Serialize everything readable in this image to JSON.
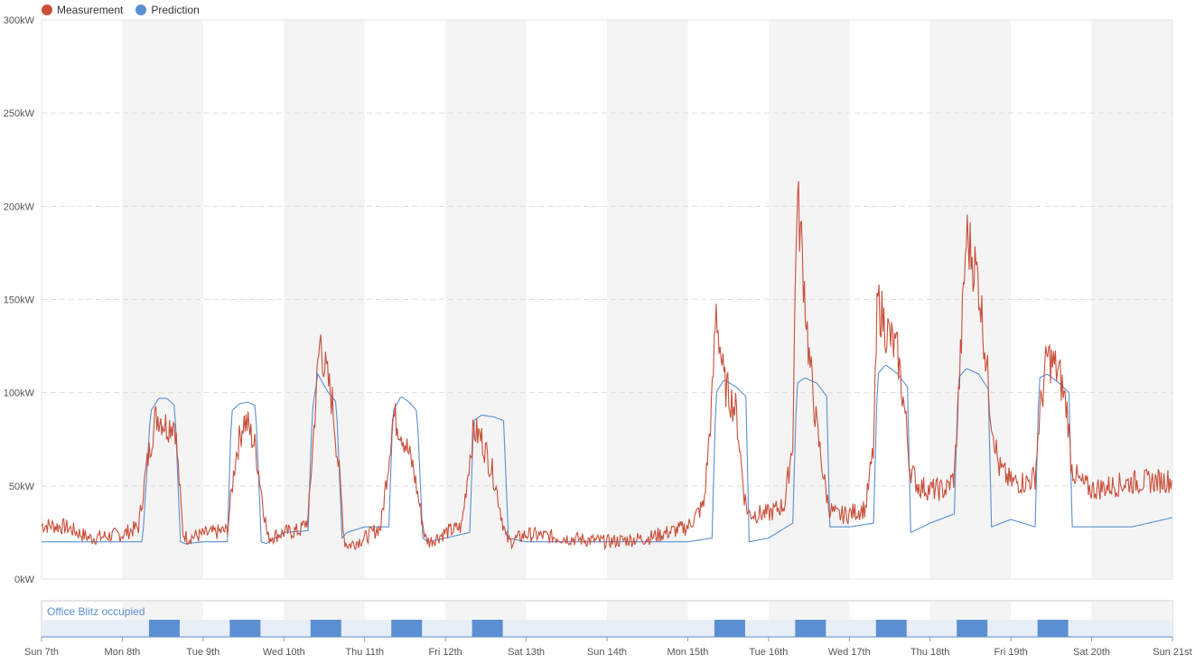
{
  "legend": {
    "measurement_label": "Measurement",
    "prediction_label": "Prediction"
  },
  "occupancy": {
    "label": "Office Blitz occupied"
  },
  "colors": {
    "measurement": "#c94f3b",
    "prediction": "#5b8fd1",
    "occupied": "#5b8fd1",
    "band": "#f4f4f4"
  },
  "chart_data": {
    "type": "line",
    "x_unit": "days",
    "x_range": [
      0,
      14
    ],
    "y_ticks": [
      "0kW",
      "50kW",
      "100kW",
      "150kW",
      "200kW",
      "250kW",
      "300kW"
    ],
    "ylim": [
      0,
      300
    ],
    "x_tick_labels": [
      "Sun 7th",
      "Mon 8th",
      "Tue 9th",
      "Wed 10th",
      "Thu 11th",
      "Fri 12th",
      "Sat 13th",
      "Sun 14th",
      "Mon 15th",
      "Tue 16th",
      "Wed 17th",
      "Thu 18th",
      "Fri 19th",
      "Sat 20th",
      "Sun 21st"
    ],
    "grid": "horizontal dashed",
    "legend_position": "top-left",
    "series": [
      {
        "name": "Measurement",
        "x": [
          0,
          0.3,
          0.6,
          1.0,
          1.2,
          1.3,
          1.4,
          1.45,
          1.55,
          1.65,
          1.7,
          1.75,
          1.8,
          2.0,
          2.3,
          2.4,
          2.5,
          2.55,
          2.65,
          2.8,
          3.0,
          3.2,
          3.3,
          3.4,
          3.45,
          3.5,
          3.6,
          3.7,
          3.75,
          3.8,
          4.0,
          4.2,
          4.3,
          4.35,
          4.45,
          4.6,
          4.75,
          4.8,
          5.0,
          5.2,
          5.3,
          5.35,
          5.45,
          5.6,
          5.75,
          5.8,
          6.0,
          6.5,
          7.0,
          7.5,
          8.0,
          8.2,
          8.3,
          8.35,
          8.45,
          8.6,
          8.7,
          8.75,
          8.85,
          9.0,
          9.2,
          9.3,
          9.35,
          9.4,
          9.5,
          9.6,
          9.7,
          9.75,
          9.85,
          10.0,
          10.2,
          10.3,
          10.35,
          10.45,
          10.6,
          10.7,
          10.75,
          10.85,
          11.0,
          11.2,
          11.3,
          11.35,
          11.45,
          11.6,
          11.7,
          11.75,
          11.85,
          12.0,
          12.2,
          12.3,
          12.35,
          12.45,
          12.6,
          12.7,
          12.75,
          12.85,
          13.0,
          13.5,
          14.0
        ],
        "values": [
          29,
          28,
          22,
          24,
          28,
          60,
          85,
          88,
          82,
          85,
          55,
          25,
          22,
          24,
          26,
          65,
          85,
          83,
          70,
          22,
          25,
          26,
          32,
          100,
          130,
          115,
          95,
          50,
          20,
          18,
          22,
          28,
          65,
          88,
          80,
          60,
          22,
          20,
          25,
          28,
          65,
          80,
          75,
          55,
          22,
          20,
          24,
          22,
          20,
          22,
          28,
          40,
          95,
          145,
          105,
          90,
          45,
          35,
          35,
          35,
          40,
          75,
          205,
          185,
          120,
          80,
          50,
          38,
          34,
          35,
          38,
          70,
          150,
          135,
          120,
          85,
          60,
          50,
          48,
          48,
          55,
          95,
          185,
          160,
          115,
          90,
          60,
          52,
          52,
          55,
          85,
          120,
          110,
          90,
          60,
          52,
          48,
          52,
          53
        ]
      },
      {
        "name": "Prediction",
        "x": [
          0,
          0.5,
          1.0,
          1.25,
          1.35,
          1.45,
          1.55,
          1.65,
          1.72,
          1.78,
          2.0,
          2.3,
          2.35,
          2.45,
          2.55,
          2.65,
          2.72,
          2.78,
          3.0,
          3.3,
          3.35,
          3.42,
          3.55,
          3.65,
          3.72,
          3.78,
          4.0,
          4.3,
          4.35,
          4.45,
          4.55,
          4.65,
          4.72,
          4.78,
          5.0,
          5.3,
          5.35,
          5.45,
          5.6,
          5.72,
          5.78,
          6.0,
          7.0,
          8.0,
          8.3,
          8.35,
          8.45,
          8.6,
          8.72,
          8.76,
          9.0,
          9.3,
          9.35,
          9.45,
          9.6,
          9.72,
          9.76,
          10.0,
          10.3,
          10.35,
          10.45,
          10.6,
          10.72,
          10.76,
          11.0,
          11.3,
          11.35,
          11.45,
          11.6,
          11.72,
          11.76,
          12.0,
          12.3,
          12.35,
          12.45,
          12.6,
          12.72,
          12.76,
          13.0,
          13.5,
          14.0
        ],
        "values": [
          20,
          20,
          20,
          20,
          90,
          97,
          97,
          93,
          20,
          19,
          20,
          20,
          90,
          94,
          95,
          93,
          20,
          19,
          25,
          26,
          90,
          110,
          100,
          95,
          22,
          25,
          28,
          28,
          90,
          98,
          95,
          90,
          22,
          20,
          22,
          25,
          85,
          88,
          87,
          85,
          22,
          20,
          20,
          20,
          22,
          100,
          107,
          103,
          98,
          20,
          22,
          30,
          105,
          108,
          105,
          98,
          28,
          28,
          30,
          110,
          115,
          110,
          103,
          25,
          30,
          35,
          108,
          113,
          110,
          102,
          28,
          32,
          28,
          108,
          110,
          105,
          100,
          28,
          28,
          28,
          33
        ]
      }
    ]
  },
  "occupancy_data": {
    "type": "bar",
    "label": "Office Blitz occupied",
    "intervals_days": [
      [
        1.33,
        1.71
      ],
      [
        2.33,
        2.71
      ],
      [
        3.33,
        3.71
      ],
      [
        4.33,
        4.71
      ],
      [
        5.33,
        5.71
      ],
      [
        8.33,
        8.71
      ],
      [
        9.33,
        9.71
      ],
      [
        10.33,
        10.71
      ],
      [
        11.33,
        11.71
      ],
      [
        12.33,
        12.71
      ]
    ]
  }
}
